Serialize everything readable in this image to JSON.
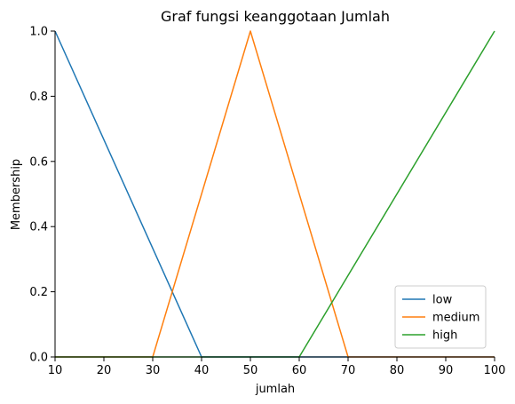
{
  "chart_data": {
    "type": "line",
    "title": "Graf fungsi keanggotaan Jumlah",
    "xlabel": "jumlah",
    "ylabel": "Membership",
    "xlim": [
      10,
      100
    ],
    "ylim": [
      0,
      1.0
    ],
    "xticks": [
      10,
      20,
      30,
      40,
      50,
      60,
      70,
      80,
      90,
      100
    ],
    "yticks": [
      0.0,
      0.2,
      0.4,
      0.6,
      0.8,
      1.0
    ],
    "xtick_labels": [
      "10",
      "20",
      "30",
      "40",
      "50",
      "60",
      "70",
      "80",
      "90",
      "100"
    ],
    "ytick_labels": [
      "0.0",
      "0.2",
      "0.4",
      "0.6",
      "0.8",
      "1.0"
    ],
    "grid": false,
    "legend_position": "bottom-right",
    "series": [
      {
        "name": "low",
        "color": "#1f77b4",
        "x": [
          10,
          40,
          100
        ],
        "y": [
          1,
          0,
          0
        ]
      },
      {
        "name": "medium",
        "color": "#ff7f0e",
        "x": [
          10,
          30,
          50,
          70,
          100
        ],
        "y": [
          0,
          0,
          1,
          0,
          0
        ]
      },
      {
        "name": "high",
        "color": "#2ca02c",
        "x": [
          10,
          60,
          100
        ],
        "y": [
          0,
          0,
          1
        ]
      }
    ]
  }
}
